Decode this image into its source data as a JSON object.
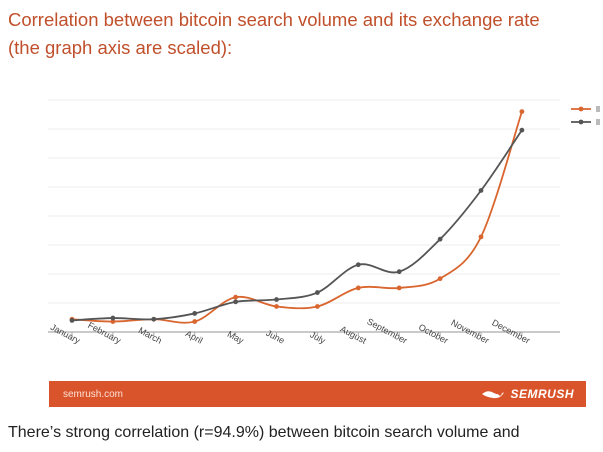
{
  "header": {
    "title_line1": "Correlation between bitcoin search volume and its exchange rate",
    "title_line2": "(the graph axis are scaled):"
  },
  "colors": {
    "title": "#c0502b",
    "series_search": "#d9652f",
    "series_rate": "#555555",
    "banner_bg": "#d9542b"
  },
  "chart_data": {
    "type": "line",
    "title": "",
    "xlabel": "",
    "ylabel": "",
    "categories": [
      "January",
      "February",
      "March",
      "April",
      "May",
      "June",
      "July",
      "August",
      "September",
      "October",
      "November",
      "December"
    ],
    "ylim": [
      0,
      100
    ],
    "grid": true,
    "legend": "top-right",
    "series": [
      {
        "name": "",
        "color": "#d9652f",
        "values": [
          5.5,
          4.5,
          5.5,
          4.5,
          15,
          11,
          11,
          19,
          19,
          23,
          41,
          95
        ]
      },
      {
        "name": "",
        "color": "#555555",
        "values": [
          5,
          6,
          5.5,
          8,
          13,
          14,
          17,
          29,
          26,
          40,
          61,
          87
        ]
      }
    ]
  },
  "banner": {
    "site": "semrush.com",
    "brand": "SEMRUSH",
    "brand_icon": "semrush-flame-icon"
  },
  "body": {
    "text": "There’s strong correlation (r=94.9%) between bitcoin search volume and"
  }
}
